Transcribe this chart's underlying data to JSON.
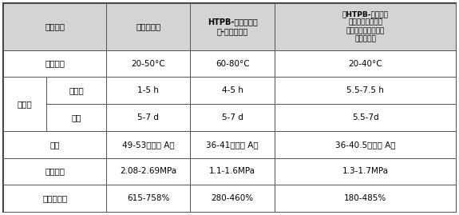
{
  "header": {
    "col0": "相关参数",
    "col1": "本发明配方",
    "col2": "HTPB-异氰酸酯体\n系-单一催化剂",
    "col3": "《HTPB-异氰酸酯\n黏结剂体系的室温\n固化及性能研究》室\n温固化配方"
  },
  "rows": [
    {
      "label": "固化温度",
      "sublabel": null,
      "vals": [
        "20-50°C",
        "60-80°C",
        "20-40°C"
      ],
      "merge_ab": true
    },
    {
      "label": "结时间",
      "sublabel": "适用期",
      "vals": [
        "1-5 h",
        "4-5 h",
        "5.5-7.5 h"
      ],
      "merge_ab": false,
      "span_next": true
    },
    {
      "label": null,
      "sublabel": "终凝",
      "vals": [
        "5-7 d",
        "5-7 d",
        "5.5-7d"
      ],
      "merge_ab": false,
      "span_prev": true
    },
    {
      "label": "硬度",
      "sublabel": null,
      "vals": [
        "49-53（邵氏 A）",
        "36-41（邵氏 A）",
        "36-40.5（邵氏 A）"
      ],
      "merge_ab": true
    },
    {
      "label": "抗拉强度",
      "sublabel": null,
      "vals": [
        "2.08-2.69MPa",
        "1.1-1.6MPa",
        "1.3-1.7MPa"
      ],
      "merge_ab": true
    },
    {
      "label": "断裂伸长率",
      "sublabel": null,
      "vals": [
        "615-758%",
        "280-460%",
        "180-485%"
      ],
      "merge_ab": true
    }
  ],
  "bg_color": "#ffffff",
  "grid_color": "#555555",
  "header_bg": "#d4d4d4",
  "row_bg": "#ffffff",
  "font_size": 7.5,
  "header_font_size": 7.5
}
